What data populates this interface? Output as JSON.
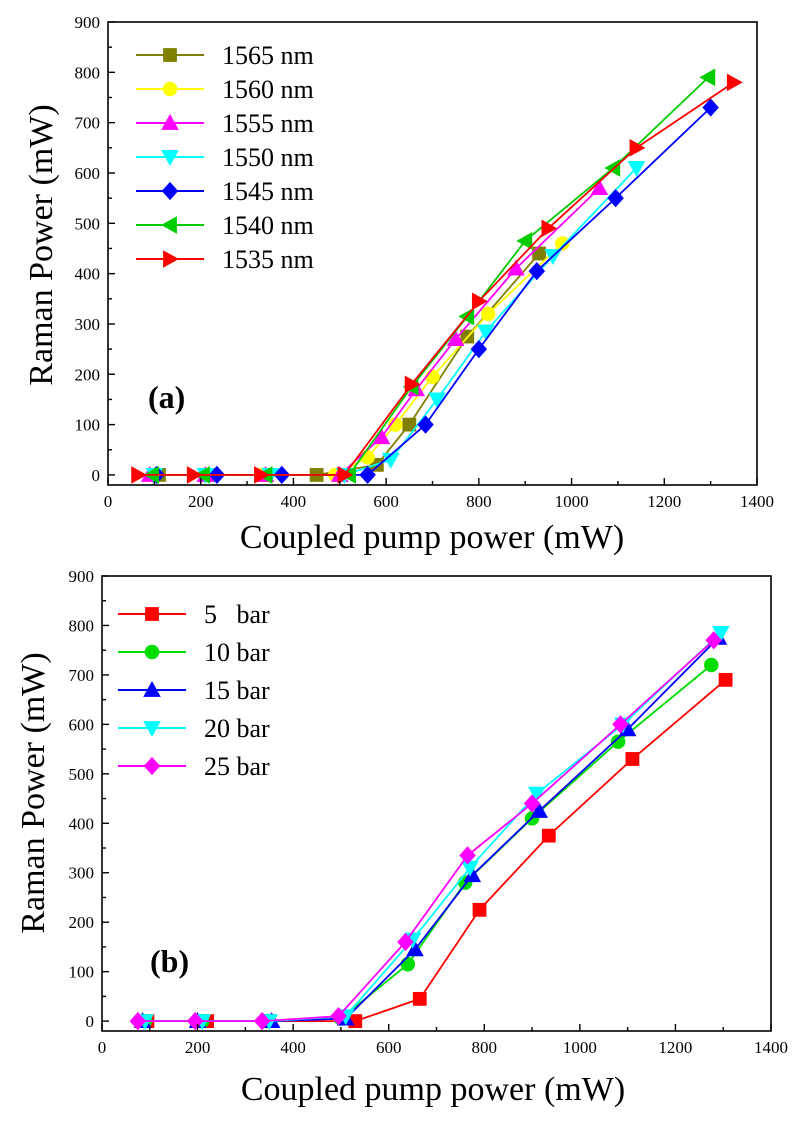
{
  "chart_data": [
    {
      "type": "line",
      "panel_label": "(a)",
      "xlabel": "Coupled pump power (mW)",
      "ylabel": "Raman Power (mW)",
      "xlim": [
        0,
        1400
      ],
      "ylim": [
        -20,
        900
      ],
      "xticks": [
        0,
        200,
        400,
        600,
        800,
        1000,
        1200,
        1400
      ],
      "yticks": [
        0,
        100,
        200,
        300,
        400,
        500,
        600,
        700,
        800,
        900
      ],
      "legend_position": "top-left",
      "series": [
        {
          "name": "1565 nm",
          "color": "#808000",
          "marker": "square",
          "x": [
            110,
            220,
            340,
            450,
            580,
            650,
            775,
            930
          ],
          "y": [
            0,
            0,
            0,
            0,
            20,
            100,
            275,
            440
          ]
        },
        {
          "name": "1560 nm",
          "color": "#ffff00",
          "marker": "circle",
          "x": [
            100,
            210,
            330,
            490,
            560,
            620,
            700,
            820,
            980
          ],
          "y": [
            0,
            0,
            0,
            0,
            35,
            100,
            195,
            320,
            460
          ]
        },
        {
          "name": "1555 nm",
          "color": "#ff00ff",
          "marker": "triangle-up",
          "x": [
            90,
            210,
            340,
            500,
            590,
            665,
            750,
            880,
            1060
          ],
          "y": [
            0,
            0,
            0,
            0,
            75,
            170,
            270,
            410,
            570
          ]
        },
        {
          "name": "1550 nm",
          "color": "#00ffff",
          "marker": "triangle-down",
          "x": [
            100,
            210,
            350,
            510,
            610,
            710,
            815,
            960,
            1140
          ],
          "y": [
            0,
            0,
            0,
            0,
            30,
            150,
            285,
            435,
            610
          ]
        },
        {
          "name": "1545 nm",
          "color": "#0000ff",
          "marker": "diamond",
          "x": [
            105,
            235,
            375,
            560,
            685,
            800,
            925,
            1095,
            1300
          ],
          "y": [
            0,
            0,
            0,
            0,
            100,
            250,
            405,
            550,
            730
          ]
        },
        {
          "name": "1540 nm",
          "color": "#00cc00",
          "marker": "triangle-left",
          "x": [
            95,
            205,
            340,
            520,
            655,
            775,
            900,
            1090,
            1295
          ],
          "y": [
            0,
            0,
            0,
            0,
            175,
            315,
            465,
            610,
            790
          ]
        },
        {
          "name": "1535 nm",
          "color": "#ff0000",
          "marker": "triangle-right",
          "x": [
            65,
            185,
            330,
            510,
            655,
            800,
            950,
            1140,
            1350
          ],
          "y": [
            0,
            0,
            0,
            0,
            180,
            345,
            490,
            650,
            780
          ]
        }
      ]
    },
    {
      "type": "line",
      "panel_label": "(b)",
      "xlabel": "Coupled pump power (mW)",
      "ylabel": "Raman Power (mW)",
      "xlim": [
        0,
        1400
      ],
      "ylim": [
        -20,
        900
      ],
      "xticks": [
        0,
        200,
        400,
        600,
        800,
        1000,
        1200,
        1400
      ],
      "yticks": [
        0,
        100,
        200,
        300,
        400,
        500,
        600,
        700,
        800,
        900
      ],
      "legend_position": "top-left",
      "series": [
        {
          "name": "5   bar",
          "color": "#ff0000",
          "marker": "square",
          "x": [
            95,
            220,
            350,
            530,
            665,
            790,
            935,
            1110,
            1305
          ],
          "y": [
            0,
            0,
            0,
            0,
            45,
            225,
            375,
            530,
            690
          ]
        },
        {
          "name": "10 bar",
          "color": "#00dd00",
          "marker": "circle",
          "x": [
            90,
            210,
            345,
            500,
            640,
            760,
            900,
            1080,
            1275
          ],
          "y": [
            0,
            0,
            0,
            5,
            115,
            280,
            410,
            565,
            720
          ]
        },
        {
          "name": "15 bar",
          "color": "#0000ff",
          "marker": "triangle-up",
          "x": [
            85,
            200,
            355,
            510,
            655,
            775,
            915,
            1100,
            1290
          ],
          "y": [
            0,
            0,
            0,
            5,
            145,
            295,
            425,
            590,
            775
          ]
        },
        {
          "name": "20 bar",
          "color": "#00ffff",
          "marker": "triangle-down",
          "x": [
            90,
            210,
            350,
            510,
            650,
            770,
            910,
            1090,
            1295
          ],
          "y": [
            0,
            0,
            0,
            10,
            165,
            310,
            460,
            600,
            785
          ]
        },
        {
          "name": "25 bar",
          "color": "#ff00ff",
          "marker": "diamond",
          "x": [
            75,
            195,
            335,
            495,
            635,
            765,
            900,
            1085,
            1280
          ],
          "y": [
            0,
            0,
            0,
            10,
            160,
            335,
            440,
            600,
            770
          ]
        }
      ]
    }
  ]
}
